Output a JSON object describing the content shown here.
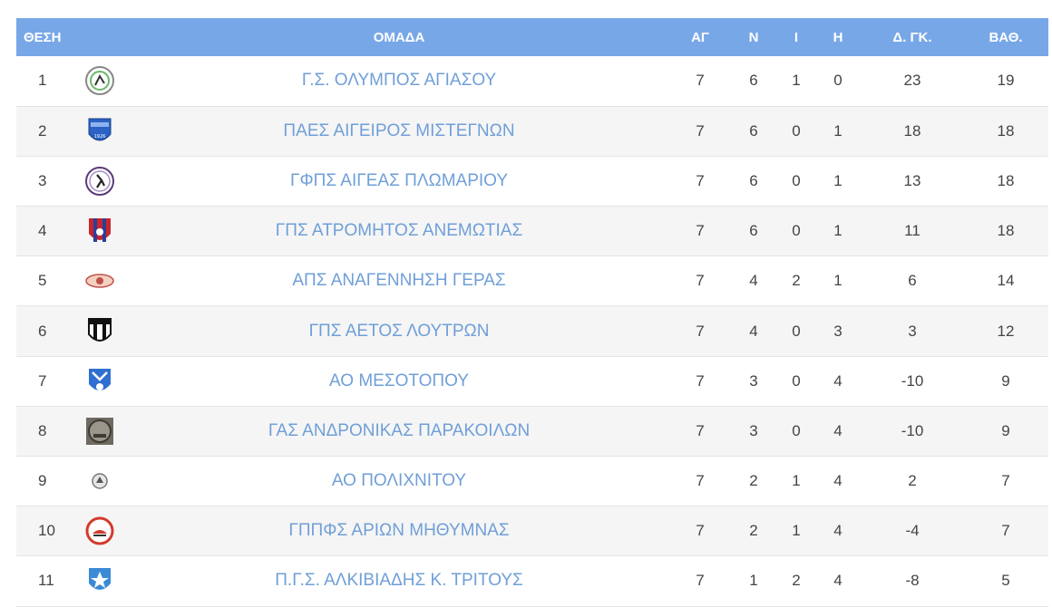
{
  "headers": {
    "pos": "ΘΕΣΗ",
    "team": "ΟΜΑΔΑ",
    "played": "ΑΓ",
    "wins": "Ν",
    "draws": "Ι",
    "losses": "Η",
    "goal_diff": "Δ. ΓΚ.",
    "points": "ΒΑΘ."
  },
  "colors": {
    "header_bg": "#78a7e8",
    "team_text": "#6f9fd8"
  },
  "rows": [
    {
      "pos": "1",
      "logo": "olympos-agiasou-crest-icon",
      "team": "Γ.Σ. ΟΛΥΜΠΟΣ ΑΓΙΑΣΟΥ",
      "played": "7",
      "wins": "6",
      "draws": "1",
      "losses": "0",
      "goal_diff": "23",
      "points": "19"
    },
    {
      "pos": "2",
      "logo": "aigeiros-misteggnon-crest-icon",
      "team": "ΠΑΕΣ ΑΙΓΕΙΡΟΣ ΜΙΣΤΕΓΝΩΝ",
      "played": "7",
      "wins": "6",
      "draws": "0",
      "losses": "1",
      "goal_diff": "18",
      "points": "18"
    },
    {
      "pos": "3",
      "logo": "aigeas-plomariou-crest-icon",
      "team": "ΓΦΠΣ ΑΙΓΕΑΣ ΠΛΩΜΑΡΙΟΥ",
      "played": "7",
      "wins": "6",
      "draws": "0",
      "losses": "1",
      "goal_diff": "13",
      "points": "18"
    },
    {
      "pos": "4",
      "logo": "atromitos-anemotias-crest-icon",
      "team": "ΓΠΣ ΑΤΡΟΜΗΤΟΣ ΑΝΕΜΩΤΙΑΣ",
      "played": "7",
      "wins": "6",
      "draws": "0",
      "losses": "1",
      "goal_diff": "11",
      "points": "18"
    },
    {
      "pos": "5",
      "logo": "anagennisi-geras-crest-icon",
      "team": "ΑΠΣ ΑΝΑΓΕΝΝΗΣΗ ΓΕΡΑΣ",
      "played": "7",
      "wins": "4",
      "draws": "2",
      "losses": "1",
      "goal_diff": "6",
      "points": "14"
    },
    {
      "pos": "6",
      "logo": "aetos-loutron-crest-icon",
      "team": "ΓΠΣ ΑΕΤΟΣ ΛΟΥΤΡΩΝ",
      "played": "7",
      "wins": "4",
      "draws": "0",
      "losses": "3",
      "goal_diff": "3",
      "points": "12"
    },
    {
      "pos": "7",
      "logo": "ao-mesotopou-crest-icon",
      "team": "ΑΟ ΜΕΣΟΤΟΠΟΥ",
      "played": "7",
      "wins": "3",
      "draws": "0",
      "losses": "4",
      "goal_diff": "-10",
      "points": "9"
    },
    {
      "pos": "8",
      "logo": "andronikas-parakoilon-crest-icon",
      "team": "ΓΑΣ ΑΝΔΡΟΝΙΚΑΣ ΠΑΡΑΚΟΙΛΩΝ",
      "played": "7",
      "wins": "3",
      "draws": "0",
      "losses": "4",
      "goal_diff": "-10",
      "points": "9"
    },
    {
      "pos": "9",
      "logo": "ao-polichnitou-crest-icon",
      "team": "ΑΟ ΠΟΛΙΧΝΙΤΟΥ",
      "played": "7",
      "wins": "2",
      "draws": "1",
      "losses": "4",
      "goal_diff": "2",
      "points": "7"
    },
    {
      "pos": "10",
      "logo": "arion-mithymnas-crest-icon",
      "team": "ΓΠΠΦΣ ΑΡΙΩΝ ΜΗΘΥΜΝΑΣ",
      "played": "7",
      "wins": "2",
      "draws": "1",
      "losses": "4",
      "goal_diff": "-4",
      "points": "7"
    },
    {
      "pos": "11",
      "logo": "alkiviadis-tritous-crest-icon",
      "team": "Π.Γ.Σ. ΑΛΚΙΒΙΑΔΗΣ Κ. ΤΡΙΤΟΥΣ",
      "played": "7",
      "wins": "1",
      "draws": "2",
      "losses": "4",
      "goal_diff": "-8",
      "points": "5"
    }
  ]
}
